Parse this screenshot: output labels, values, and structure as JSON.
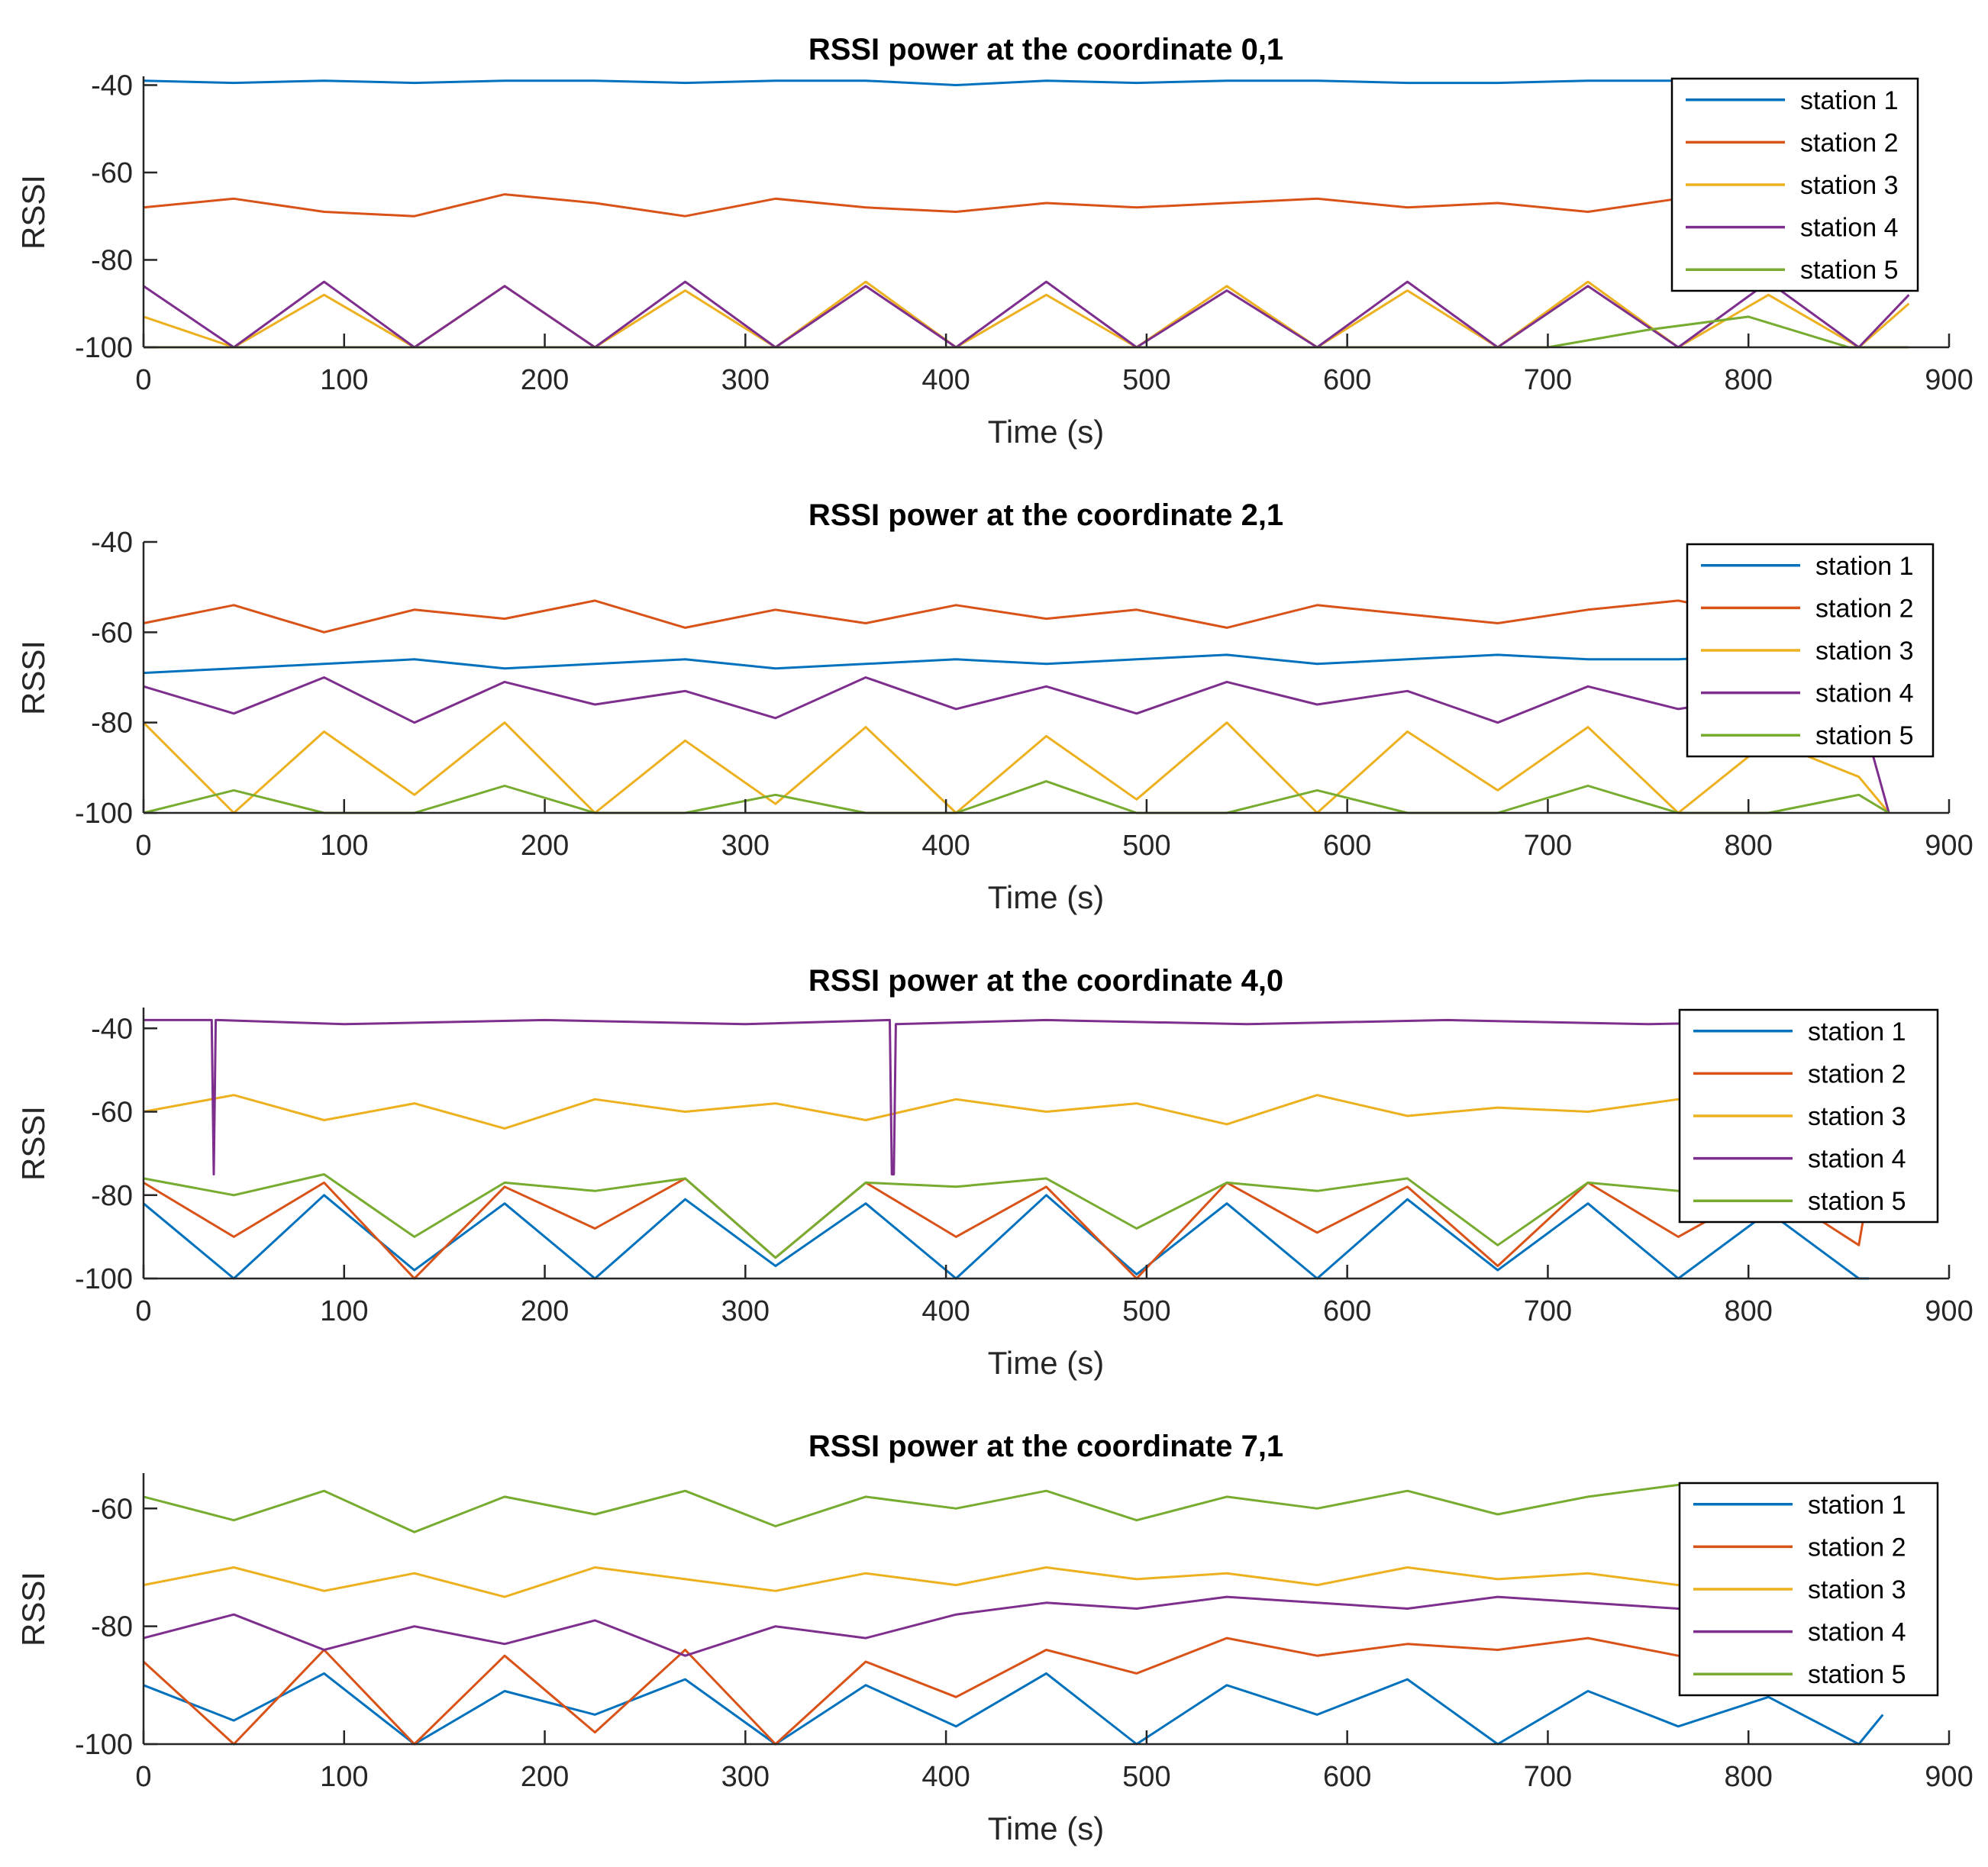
{
  "figure": {
    "background": "#ffffff",
    "axis_color": "#262626",
    "series_colors": [
      "#0072BD",
      "#D95319",
      "#EDB120",
      "#7E2F8E",
      "#77AC30"
    ]
  },
  "chart_data": [
    {
      "type": "line",
      "title": "RSSI power at the coordinate 0,1",
      "xlabel": "Time (s)",
      "ylabel": "RSSI",
      "xlim": [
        0,
        900
      ],
      "ylim": [
        -100,
        -38
      ],
      "xticks": [
        0,
        100,
        200,
        300,
        400,
        500,
        600,
        700,
        800,
        900
      ],
      "yticks": [
        -40,
        -60,
        -80,
        -100
      ],
      "grid": false,
      "legend_position": "top-right",
      "series": [
        {
          "name": "station 1",
          "x": [
            0,
            45,
            90,
            135,
            180,
            225,
            270,
            315,
            360,
            405,
            450,
            495,
            540,
            585,
            630,
            675,
            720,
            765,
            810,
            855,
            880
          ],
          "y": [
            -39,
            -39.5,
            -39,
            -39.5,
            -39,
            -39,
            -39.5,
            -39,
            -39,
            -40,
            -39,
            -39.5,
            -39,
            -39,
            -39.5,
            -39.5,
            -39,
            -39,
            -39.5,
            -39,
            -39
          ]
        },
        {
          "name": "station 2",
          "x": [
            0,
            45,
            90,
            135,
            180,
            225,
            270,
            315,
            360,
            405,
            450,
            495,
            540,
            585,
            630,
            675,
            720,
            765,
            810,
            855,
            880
          ],
          "y": [
            -68,
            -66,
            -69,
            -70,
            -65,
            -67,
            -70,
            -66,
            -68,
            -69,
            -67,
            -68,
            -67,
            -66,
            -68,
            -67,
            -69,
            -66,
            -68,
            -68,
            -67
          ]
        },
        {
          "name": "station 3",
          "x": [
            0,
            45,
            90,
            135,
            180,
            225,
            270,
            315,
            360,
            405,
            450,
            495,
            540,
            585,
            630,
            675,
            720,
            765,
            810,
            855,
            880
          ],
          "y": [
            -93,
            -100,
            -88,
            -100,
            -86,
            -100,
            -87,
            -100,
            -85,
            -100,
            -88,
            -100,
            -86,
            -100,
            -87,
            -100,
            -85,
            -100,
            -88,
            -100,
            -90
          ]
        },
        {
          "name": "station 4",
          "x": [
            0,
            45,
            90,
            135,
            180,
            225,
            270,
            315,
            360,
            405,
            450,
            495,
            540,
            585,
            630,
            675,
            720,
            765,
            810,
            855,
            880
          ],
          "y": [
            -86,
            -100,
            -85,
            -100,
            -86,
            -100,
            -85,
            -100,
            -86,
            -100,
            -85,
            -100,
            -87,
            -100,
            -85,
            -100,
            -86,
            -100,
            -85,
            -100,
            -88
          ]
        },
        {
          "name": "station 5",
          "x": [
            0,
            100,
            200,
            300,
            400,
            500,
            600,
            700,
            750,
            800,
            850,
            880
          ],
          "y": [
            -100,
            -100,
            -100,
            -100,
            -100,
            -100,
            -100,
            -100,
            -96,
            -93,
            -100,
            -100
          ]
        }
      ]
    },
    {
      "type": "line",
      "title": "RSSI power at the coordinate 2,1",
      "xlabel": "Time (s)",
      "ylabel": "RSSI",
      "xlim": [
        0,
        900
      ],
      "ylim": [
        -100,
        -40
      ],
      "xticks": [
        0,
        100,
        200,
        300,
        400,
        500,
        600,
        700,
        800,
        900
      ],
      "yticks": [
        -40,
        -60,
        -80,
        -100
      ],
      "grid": false,
      "legend_position": "top-right",
      "series": [
        {
          "name": "station 1",
          "x": [
            0,
            45,
            90,
            135,
            180,
            225,
            270,
            315,
            360,
            405,
            450,
            495,
            540,
            585,
            630,
            675,
            720,
            765,
            810,
            855,
            870
          ],
          "y": [
            -69,
            -68,
            -67,
            -66,
            -68,
            -67,
            -66,
            -68,
            -67,
            -66,
            -67,
            -66,
            -65,
            -67,
            -66,
            -65,
            -66,
            -66,
            -65,
            -66,
            -66
          ]
        },
        {
          "name": "station 2",
          "x": [
            0,
            45,
            90,
            135,
            180,
            225,
            270,
            315,
            360,
            405,
            450,
            495,
            540,
            585,
            630,
            675,
            720,
            765,
            810,
            855,
            870
          ],
          "y": [
            -58,
            -54,
            -60,
            -55,
            -57,
            -53,
            -59,
            -55,
            -58,
            -54,
            -57,
            -55,
            -59,
            -54,
            -56,
            -58,
            -55,
            -53,
            -57,
            -56,
            -57
          ]
        },
        {
          "name": "station 3",
          "x": [
            0,
            45,
            90,
            135,
            180,
            225,
            270,
            315,
            360,
            405,
            450,
            495,
            540,
            585,
            630,
            675,
            720,
            765,
            810,
            855,
            870
          ],
          "y": [
            -80,
            -100,
            -82,
            -96,
            -80,
            -100,
            -84,
            -98,
            -81,
            -100,
            -83,
            -97,
            -80,
            -100,
            -82,
            -95,
            -81,
            -100,
            -84,
            -92,
            -100
          ]
        },
        {
          "name": "station 4",
          "x": [
            0,
            45,
            90,
            135,
            180,
            225,
            270,
            315,
            360,
            405,
            450,
            495,
            540,
            585,
            630,
            675,
            720,
            765,
            810,
            855,
            870
          ],
          "y": [
            -72,
            -78,
            -70,
            -80,
            -71,
            -76,
            -73,
            -79,
            -70,
            -77,
            -72,
            -78,
            -71,
            -76,
            -73,
            -80,
            -72,
            -77,
            -74,
            -76,
            -100
          ]
        },
        {
          "name": "station 5",
          "x": [
            0,
            45,
            90,
            135,
            180,
            225,
            270,
            315,
            360,
            405,
            450,
            495,
            540,
            585,
            630,
            675,
            720,
            765,
            810,
            855,
            870
          ],
          "y": [
            -100,
            -95,
            -100,
            -100,
            -94,
            -100,
            -100,
            -96,
            -100,
            -100,
            -93,
            -100,
            -100,
            -95,
            -100,
            -100,
            -94,
            -100,
            -100,
            -96,
            -100
          ]
        }
      ]
    },
    {
      "type": "line",
      "title": "RSSI power at the coordinate 4,0",
      "xlabel": "Time (s)",
      "ylabel": "RSSI",
      "xlim": [
        0,
        900
      ],
      "ylim": [
        -100,
        -35
      ],
      "xticks": [
        0,
        100,
        200,
        300,
        400,
        500,
        600,
        700,
        800,
        900
      ],
      "yticks": [
        -40,
        -60,
        -80,
        -100
      ],
      "grid": false,
      "legend_position": "top-right",
      "series": [
        {
          "name": "station 1",
          "x": [
            0,
            45,
            90,
            135,
            180,
            225,
            270,
            315,
            360,
            405,
            450,
            495,
            540,
            585,
            630,
            675,
            720,
            765,
            810,
            855,
            860
          ],
          "y": [
            -82,
            -100,
            -80,
            -98,
            -82,
            -100,
            -81,
            -97,
            -82,
            -100,
            -80,
            -99,
            -82,
            -100,
            -81,
            -98,
            -82,
            -100,
            -84,
            -100,
            -100
          ]
        },
        {
          "name": "station 2",
          "x": [
            0,
            45,
            90,
            135,
            180,
            225,
            270,
            315,
            360,
            405,
            450,
            495,
            540,
            585,
            630,
            675,
            720,
            765,
            810,
            855,
            860
          ],
          "y": [
            -77,
            -90,
            -77,
            -100,
            -78,
            -88,
            -76,
            -95,
            -77,
            -90,
            -78,
            -100,
            -77,
            -89,
            -78,
            -97,
            -77,
            -90,
            -78,
            -92,
            -78
          ]
        },
        {
          "name": "station 3",
          "x": [
            0,
            45,
            90,
            135,
            180,
            225,
            270,
            315,
            360,
            405,
            450,
            495,
            540,
            585,
            630,
            675,
            720,
            765,
            810,
            855,
            860
          ],
          "y": [
            -60,
            -56,
            -62,
            -58,
            -64,
            -57,
            -60,
            -58,
            -62,
            -57,
            -60,
            -58,
            -63,
            -56,
            -61,
            -59,
            -60,
            -57,
            -62,
            -58,
            -60
          ]
        },
        {
          "name": "station 4",
          "x": [
            0,
            34,
            35,
            36,
            37,
            100,
            200,
            300,
            372,
            373,
            374,
            375,
            450,
            550,
            650,
            750,
            860
          ],
          "y": [
            -38,
            -38,
            -75,
            -38,
            -38,
            -39,
            -38,
            -39,
            -38,
            -75,
            -75,
            -39,
            -38,
            -39,
            -38,
            -39,
            -38
          ]
        },
        {
          "name": "station 5",
          "x": [
            0,
            45,
            90,
            135,
            180,
            225,
            270,
            315,
            360,
            405,
            450,
            495,
            540,
            585,
            630,
            675,
            720,
            765,
            810,
            855,
            860
          ],
          "y": [
            -76,
            -80,
            -75,
            -90,
            -77,
            -79,
            -76,
            -95,
            -77,
            -78,
            -76,
            -88,
            -77,
            -79,
            -76,
            -92,
            -77,
            -79,
            -76,
            -80,
            -78
          ]
        }
      ]
    },
    {
      "type": "line",
      "title": "RSSI power at the coordinate 7,1",
      "xlabel": "Time (s)",
      "ylabel": "RSSI",
      "xlim": [
        0,
        900
      ],
      "ylim": [
        -100,
        -54
      ],
      "xticks": [
        0,
        100,
        200,
        300,
        400,
        500,
        600,
        700,
        800,
        900
      ],
      "yticks": [
        -60,
        -80,
        -100
      ],
      "grid": false,
      "legend_position": "top-right",
      "series": [
        {
          "name": "station 1",
          "x": [
            0,
            45,
            90,
            135,
            180,
            225,
            270,
            315,
            360,
            405,
            450,
            495,
            540,
            585,
            630,
            675,
            720,
            765,
            810,
            855,
            867
          ],
          "y": [
            -90,
            -96,
            -88,
            -100,
            -91,
            -95,
            -89,
            -100,
            -90,
            -97,
            -88,
            -100,
            -90,
            -95,
            -89,
            -100,
            -91,
            -97,
            -92,
            -100,
            -95
          ]
        },
        {
          "name": "station 2",
          "x": [
            0,
            45,
            90,
            135,
            180,
            225,
            270,
            315,
            360,
            405,
            450,
            495,
            540,
            585,
            630,
            675,
            720,
            765,
            810,
            855,
            867
          ],
          "y": [
            -86,
            -100,
            -84,
            -100,
            -85,
            -98,
            -84,
            -100,
            -86,
            -92,
            -84,
            -88,
            -82,
            -85,
            -83,
            -84,
            -82,
            -85,
            -83,
            -86,
            -84
          ]
        },
        {
          "name": "station 3",
          "x": [
            0,
            45,
            90,
            135,
            180,
            225,
            270,
            315,
            360,
            405,
            450,
            495,
            540,
            585,
            630,
            675,
            720,
            765,
            810,
            855,
            867
          ],
          "y": [
            -73,
            -70,
            -74,
            -71,
            -75,
            -70,
            -72,
            -74,
            -71,
            -73,
            -70,
            -72,
            -71,
            -73,
            -70,
            -72,
            -71,
            -73,
            -70,
            -72,
            -71
          ]
        },
        {
          "name": "station 4",
          "x": [
            0,
            45,
            90,
            135,
            180,
            225,
            270,
            315,
            360,
            405,
            450,
            495,
            540,
            585,
            630,
            675,
            720,
            765,
            810,
            855,
            867
          ],
          "y": [
            -82,
            -78,
            -84,
            -80,
            -83,
            -79,
            -85,
            -80,
            -82,
            -78,
            -76,
            -77,
            -75,
            -76,
            -77,
            -75,
            -76,
            -77,
            -76,
            -75,
            -76
          ]
        },
        {
          "name": "station 5",
          "x": [
            0,
            45,
            90,
            135,
            180,
            225,
            270,
            315,
            360,
            405,
            450,
            495,
            540,
            585,
            630,
            675,
            720,
            765,
            810,
            855,
            867
          ],
          "y": [
            -58,
            -62,
            -57,
            -64,
            -58,
            -61,
            -57,
            -63,
            -58,
            -60,
            -57,
            -62,
            -58,
            -60,
            -57,
            -61,
            -58,
            -56,
            -58,
            -60,
            -58
          ]
        }
      ]
    }
  ]
}
